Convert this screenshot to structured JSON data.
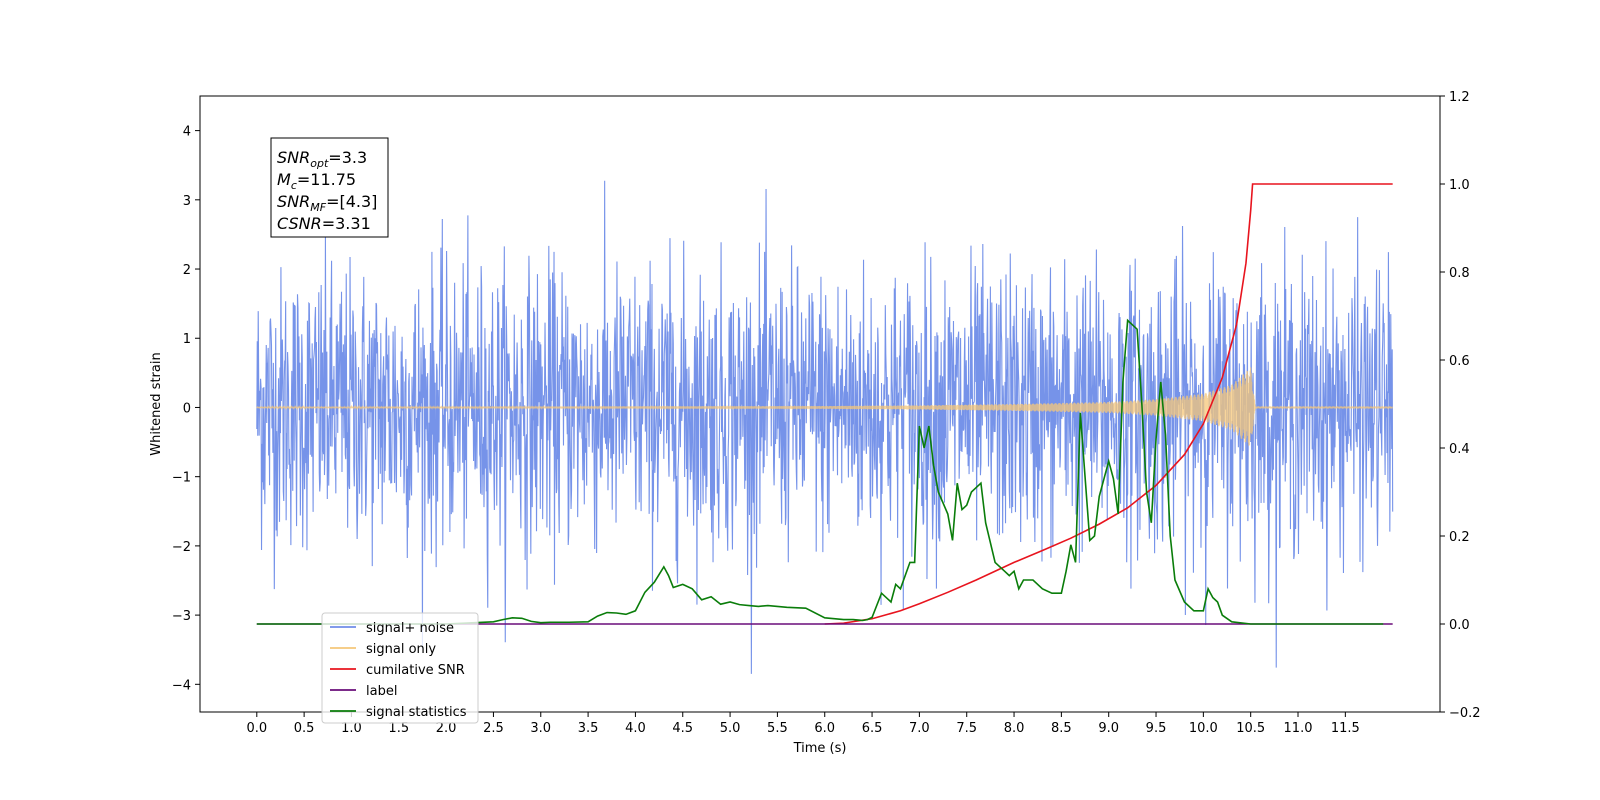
{
  "chart_data": {
    "type": "line",
    "xlabel": "Time (s)",
    "ylabel": "Whitened strain",
    "xlim": [
      -0.6,
      12.5
    ],
    "ylim": [
      -4.4,
      4.5
    ],
    "y2lim": [
      -0.2,
      1.2
    ],
    "x_ticks": [
      0.0,
      0.5,
      1.0,
      1.5,
      2.0,
      2.5,
      3.0,
      3.5,
      4.0,
      4.5,
      5.0,
      5.5,
      6.0,
      6.5,
      7.0,
      7.5,
      8.0,
      8.5,
      9.0,
      9.5,
      10.0,
      10.5,
      11.0,
      11.5
    ],
    "x_tick_labels": [
      "0.0",
      "0.5",
      "1.0",
      "1.5",
      "2.0",
      "2.5",
      "3.0",
      "3.5",
      "4.0",
      "4.5",
      "5.0",
      "5.5",
      "6.0",
      "6.5",
      "7.0",
      "7.5",
      "8.0",
      "8.5",
      "9.0",
      "9.5",
      "10.0",
      "10.5",
      "11.0",
      "11.5"
    ],
    "y_ticks": [
      -4,
      -3,
      -2,
      -1,
      0,
      1,
      2,
      3,
      4
    ],
    "y_tick_labels": [
      "−4",
      "−3",
      "−2",
      "−1",
      "0",
      "1",
      "2",
      "3",
      "4"
    ],
    "y2_ticks": [
      -0.2,
      0.0,
      0.2,
      0.4,
      0.6,
      0.8,
      1.0,
      1.2
    ],
    "y2_tick_labels": [
      "−0.2",
      "0.0",
      "0.2",
      "0.4",
      "0.6",
      "0.8",
      "1.0",
      "1.2"
    ],
    "grid": false,
    "legend_position": "lower-left",
    "annotation": [
      {
        "base": "SNR",
        "sub": "opt",
        "value": "=3.3"
      },
      {
        "base": "M",
        "sub": "c",
        "value": "=11.75"
      },
      {
        "base": "SNR",
        "sub": "MF",
        "value": "=[4.3]"
      },
      {
        "base": "CSNR",
        "sub": "",
        "value": "=3.31"
      }
    ],
    "series": [
      {
        "name": "signal+ noise",
        "color": "#6f8de8",
        "axis": "left",
        "kind": "noise",
        "x_range": [
          0.0,
          12.0
        ],
        "band_sigma": 1.0,
        "y_min_observed": -3.85,
        "y_max_observed": 4.12
      },
      {
        "name": "signal only",
        "color": "#f5c77a",
        "axis": "left",
        "kind": "chirp",
        "x_range": [
          0.0,
          10.5
        ],
        "x": [
          0.0,
          6.0,
          7.0,
          8.0,
          9.0,
          9.5,
          10.0,
          10.3,
          10.5,
          10.55
        ],
        "envelope": [
          0.01,
          0.02,
          0.03,
          0.05,
          0.08,
          0.12,
          0.2,
          0.33,
          0.58,
          0.0
        ]
      },
      {
        "name": "cumilative SNR",
        "color": "#e8141e",
        "axis": "right",
        "x": [
          6.0,
          6.2,
          6.5,
          6.8,
          7.0,
          7.3,
          7.6,
          8.0,
          8.3,
          8.6,
          8.9,
          9.2,
          9.5,
          9.8,
          10.0,
          10.2,
          10.35,
          10.45,
          10.5,
          10.52,
          11.0,
          11.5,
          12.0
        ],
        "y": [
          0.0,
          0.002,
          0.012,
          0.03,
          0.046,
          0.072,
          0.1,
          0.14,
          0.167,
          0.195,
          0.227,
          0.264,
          0.315,
          0.385,
          0.455,
          0.56,
          0.68,
          0.82,
          0.94,
          1.0,
          1.0,
          1.0,
          1.0
        ]
      },
      {
        "name": "label",
        "color": "#6a0d7a",
        "axis": "right",
        "x": [
          0.0,
          12.0
        ],
        "y": [
          0.0,
          0.0
        ]
      },
      {
        "name": "signal statistics",
        "color": "#0a7d0a",
        "axis": "right",
        "x": [
          0.0,
          2.0,
          2.3,
          2.5,
          2.6,
          2.7,
          2.8,
          2.9,
          3.0,
          3.1,
          3.3,
          3.5,
          3.6,
          3.7,
          3.8,
          3.9,
          4.0,
          4.1,
          4.2,
          4.3,
          4.35,
          4.4,
          4.5,
          4.6,
          4.7,
          4.8,
          4.9,
          5.0,
          5.1,
          5.2,
          5.3,
          5.4,
          5.5,
          5.6,
          5.8,
          6.0,
          6.2,
          6.3,
          6.4,
          6.45,
          6.5,
          6.6,
          6.7,
          6.75,
          6.8,
          6.9,
          6.95,
          7.0,
          7.05,
          7.1,
          7.15,
          7.2,
          7.3,
          7.35,
          7.4,
          7.45,
          7.5,
          7.55,
          7.6,
          7.65,
          7.7,
          7.8,
          7.9,
          7.95,
          8.0,
          8.05,
          8.1,
          8.2,
          8.3,
          8.4,
          8.5,
          8.55,
          8.6,
          8.65,
          8.7,
          8.8,
          8.85,
          8.9,
          9.0,
          9.05,
          9.1,
          9.15,
          9.2,
          9.3,
          9.35,
          9.4,
          9.45,
          9.5,
          9.55,
          9.6,
          9.65,
          9.7,
          9.8,
          9.9,
          10.0,
          10.05,
          10.1,
          10.15,
          10.2,
          10.3,
          10.5,
          11.0,
          11.5,
          11.9
        ],
        "y": [
          0.0,
          0.0,
          0.003,
          0.005,
          0.01,
          0.014,
          0.013,
          0.006,
          0.003,
          0.004,
          0.004,
          0.005,
          0.018,
          0.026,
          0.025,
          0.022,
          0.03,
          0.072,
          0.095,
          0.13,
          0.11,
          0.083,
          0.09,
          0.08,
          0.055,
          0.062,
          0.045,
          0.05,
          0.044,
          0.042,
          0.04,
          0.042,
          0.04,
          0.038,
          0.036,
          0.014,
          0.01,
          0.01,
          0.008,
          0.01,
          0.015,
          0.07,
          0.05,
          0.09,
          0.08,
          0.14,
          0.14,
          0.45,
          0.4,
          0.45,
          0.36,
          0.3,
          0.25,
          0.19,
          0.32,
          0.26,
          0.27,
          0.3,
          0.31,
          0.32,
          0.23,
          0.14,
          0.12,
          0.11,
          0.12,
          0.08,
          0.1,
          0.1,
          0.08,
          0.07,
          0.07,
          0.12,
          0.18,
          0.14,
          0.48,
          0.19,
          0.2,
          0.29,
          0.37,
          0.33,
          0.25,
          0.55,
          0.69,
          0.67,
          0.5,
          0.3,
          0.23,
          0.42,
          0.55,
          0.43,
          0.2,
          0.1,
          0.05,
          0.03,
          0.03,
          0.08,
          0.06,
          0.05,
          0.02,
          0.005,
          0.0,
          0.0,
          0.0,
          0.0
        ]
      }
    ]
  }
}
